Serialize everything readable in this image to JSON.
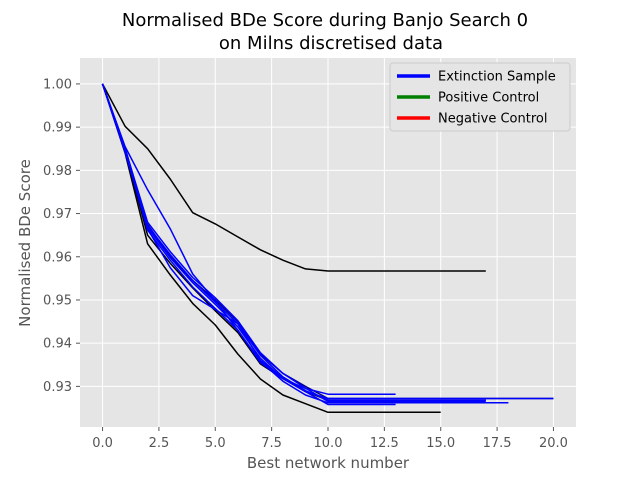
{
  "chart_data": {
    "type": "line",
    "title_line1": "Normalised BDe Score during Banjo Search 0",
    "title_line2": "on Milns discretised data",
    "xlabel": "Best network number",
    "ylabel": "Normalised BDe Score",
    "xlim": [
      -1,
      21
    ],
    "ylim": [
      0.9206,
      1.006
    ],
    "x_ticks": [
      0,
      2.5,
      5,
      7.5,
      10,
      12.5,
      15,
      17.5,
      20
    ],
    "x_tick_labels": [
      "0.0",
      "2.5",
      "5.0",
      "7.5",
      "10.0",
      "12.5",
      "15.0",
      "17.5",
      "20.0"
    ],
    "y_ticks": [
      0.93,
      0.94,
      0.95,
      0.96,
      0.97,
      0.98,
      0.99,
      1.0
    ],
    "y_tick_labels": [
      "0.93",
      "0.94",
      "0.95",
      "0.96",
      "0.97",
      "0.98",
      "0.99",
      "1.00"
    ],
    "grid": true,
    "background": "#e5e5e5",
    "legend": {
      "placement": "top-right",
      "entries": [
        {
          "label": "Extinction Sample",
          "color": "#0000ff"
        },
        {
          "label": "Positive Control",
          "color": "#008000"
        },
        {
          "label": "Negative Control",
          "color": "#ff0000"
        }
      ]
    },
    "series": [
      {
        "color": "#000000",
        "x": [
          0,
          1,
          2,
          3,
          4,
          5,
          6,
          7,
          8,
          9,
          10,
          11,
          12,
          13,
          14,
          15,
          16,
          17
        ],
        "y": [
          1.0,
          0.9902,
          0.985,
          0.978,
          0.9702,
          0.9676,
          0.9646,
          0.9616,
          0.9592,
          0.9572,
          0.9567,
          0.9567,
          0.9567,
          0.9567,
          0.9567,
          0.9567,
          0.9567,
          0.9567
        ]
      },
      {
        "color": "#000000",
        "x": [
          0,
          1,
          2,
          3,
          4,
          5,
          6,
          7,
          8,
          9,
          10,
          11,
          12,
          13,
          14,
          15
        ],
        "y": [
          1.0,
          0.984,
          0.963,
          0.9558,
          0.9492,
          0.9442,
          0.9375,
          0.9317,
          0.928,
          0.926,
          0.924,
          0.924,
          0.924,
          0.924,
          0.924,
          0.924
        ]
      },
      {
        "color": "#000000",
        "x": [
          0,
          1,
          2,
          3,
          4,
          5,
          6,
          7,
          8,
          9,
          10,
          11,
          12,
          13,
          14,
          15,
          16,
          17
        ],
        "y": [
          1.0,
          0.9845,
          0.965,
          0.9585,
          0.9528,
          0.9475,
          0.9425,
          0.9352,
          0.9318,
          0.9288,
          0.9268,
          0.9268,
          0.9268,
          0.9268,
          0.9268,
          0.9268,
          0.9268,
          0.9268
        ]
      },
      {
        "color": "#000080",
        "x": [
          0,
          1,
          2,
          3,
          4,
          5,
          6,
          7,
          8,
          9,
          10,
          11,
          12,
          13,
          14,
          15,
          16,
          17,
          18,
          19,
          20
        ],
        "y": [
          1.0,
          0.985,
          0.9675,
          0.96,
          0.9545,
          0.95,
          0.945,
          0.9375,
          0.933,
          0.93,
          0.9272,
          0.9272,
          0.9272,
          0.9272,
          0.9272,
          0.9272,
          0.9272,
          0.9272,
          0.9272,
          0.9272,
          0.9272
        ]
      },
      {
        "color": "#0000ff",
        "x": [
          0,
          1,
          2,
          3,
          4,
          5,
          6,
          7,
          8,
          9,
          10,
          11,
          12,
          13
        ],
        "y": [
          1.0,
          0.9855,
          0.9755,
          0.9665,
          0.956,
          0.9498,
          0.943,
          0.9355,
          0.9318,
          0.9295,
          0.9282,
          0.9282,
          0.9282,
          0.9282
        ]
      },
      {
        "color": "#0000ff",
        "x": [
          0,
          1,
          2,
          3,
          4,
          5,
          6,
          7,
          8,
          9,
          10,
          11,
          12,
          13
        ],
        "y": [
          1.0,
          0.9848,
          0.9665,
          0.9575,
          0.951,
          0.9478,
          0.9445,
          0.936,
          0.932,
          0.9288,
          0.9258,
          0.9258,
          0.9258,
          0.9258
        ]
      },
      {
        "color": "#0000ff",
        "x": [
          0,
          1,
          2,
          3,
          4,
          5,
          6,
          7,
          8,
          9,
          10,
          11,
          12,
          13,
          14,
          15,
          16,
          17,
          18
        ],
        "y": [
          1.0,
          0.9845,
          0.9662,
          0.9592,
          0.953,
          0.948,
          0.943,
          0.9358,
          0.9312,
          0.928,
          0.9262,
          0.9262,
          0.9262,
          0.9262,
          0.9262,
          0.9262,
          0.9262,
          0.9262,
          0.9262
        ]
      },
      {
        "color": "#0000ff",
        "x": [
          0,
          1,
          2,
          3,
          4,
          5,
          6,
          7,
          8,
          9,
          10,
          11,
          12,
          13,
          14,
          15,
          16,
          17
        ],
        "y": [
          1.0,
          0.9852,
          0.9672,
          0.9605,
          0.9545,
          0.9495,
          0.9445,
          0.9372,
          0.9322,
          0.929,
          0.9268,
          0.9268,
          0.9268,
          0.9268,
          0.9268,
          0.9268,
          0.9268,
          0.9268
        ]
      },
      {
        "color": "#0000ff",
        "x": [
          0,
          1,
          2,
          3,
          4,
          5,
          6,
          7,
          8,
          9,
          10,
          11,
          12,
          13,
          14,
          15,
          16,
          17,
          18,
          19,
          20
        ],
        "y": [
          1.0,
          0.9842,
          0.9668,
          0.9598,
          0.954,
          0.949,
          0.9438,
          0.9365,
          0.9318,
          0.9288,
          0.9272,
          0.9272,
          0.9272,
          0.9272,
          0.9272,
          0.9272,
          0.9272,
          0.9272,
          0.9272,
          0.9272,
          0.9272
        ]
      },
      {
        "color": "#0000ff",
        "x": [
          0,
          1,
          2,
          3,
          4,
          5,
          6,
          7,
          8,
          9,
          10,
          11,
          12,
          13,
          14,
          15,
          16,
          17
        ],
        "y": [
          1.0,
          0.985,
          0.968,
          0.9612,
          0.9552,
          0.9505,
          0.9452,
          0.9378,
          0.933,
          0.9296,
          0.9265,
          0.9265,
          0.9265,
          0.9265,
          0.9265,
          0.9265,
          0.9265,
          0.9265
        ]
      }
    ]
  }
}
